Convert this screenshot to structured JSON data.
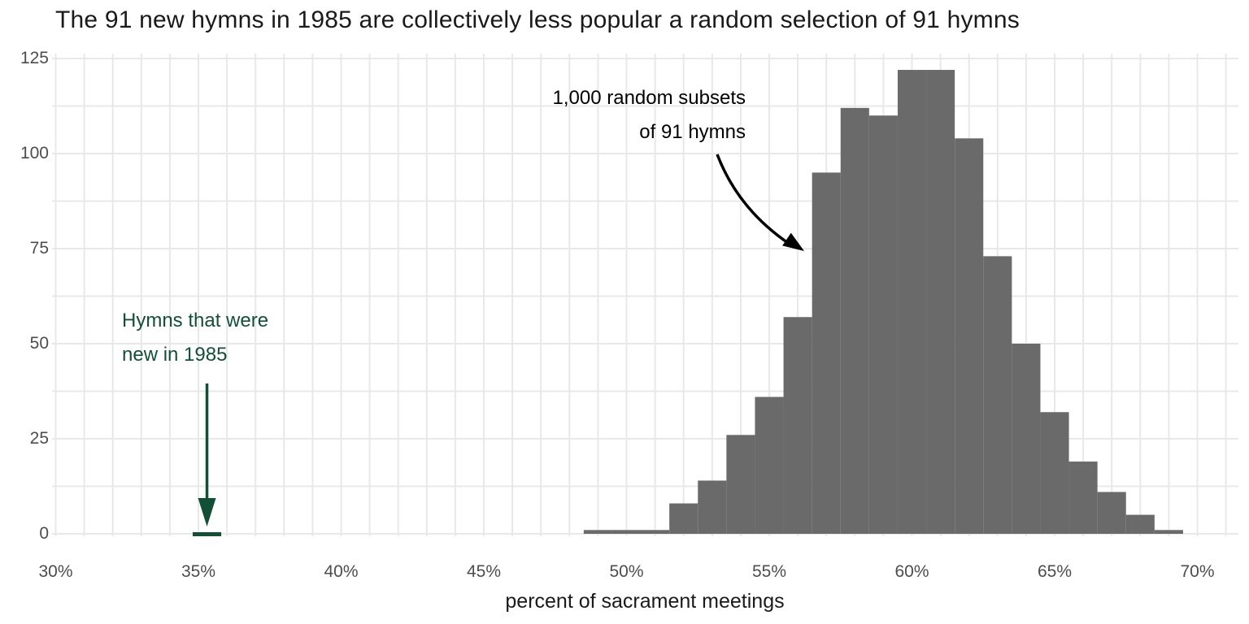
{
  "title": "The 91 new hymns in 1985 are collectively less popular a random selection of 91 hymns",
  "chart_data": {
    "type": "histogram",
    "title": "The 91 new hymns in 1985 are collectively less popular a random selection of 91 hymns",
    "xlabel": "percent of sacrament meetings",
    "ylabel": "",
    "x_ticks": [
      "30%",
      "35%",
      "40%",
      "45%",
      "50%",
      "55%",
      "60%",
      "65%",
      "70%"
    ],
    "x_tick_values": [
      30,
      35,
      40,
      45,
      50,
      55,
      60,
      65,
      70
    ],
    "y_ticks": [
      "0",
      "25",
      "50",
      "75",
      "100",
      "125"
    ],
    "y_tick_values": [
      0,
      25,
      50,
      75,
      100,
      125
    ],
    "xlim": [
      29.9,
      71.5
    ],
    "ylim": [
      0,
      127
    ],
    "grid": {
      "x_line_every_percent": 1,
      "y_line_every_count": 12.5,
      "grid_on": true
    },
    "bin_width_percent": 1,
    "bins": {
      "centers_percent": [
        49,
        50,
        51,
        52,
        53,
        54,
        55,
        56,
        57,
        58,
        59,
        60,
        61,
        62,
        63,
        64,
        65,
        66,
        67,
        68,
        69
      ],
      "counts": [
        1,
        1,
        1,
        8,
        14,
        26,
        36,
        57,
        95,
        112,
        110,
        122,
        122,
        104,
        73,
        50,
        32,
        19,
        11,
        5,
        1
      ]
    },
    "total_samples": 1000,
    "new_1985_marker": {
      "center_percent": 35.3,
      "width_percent": 1,
      "count": 1
    },
    "colors": {
      "bar": "#6a6a6a",
      "grid": "#e8e8e8",
      "annotation_green": "#134f37",
      "annotation_black": "#000000",
      "tick_label": "#4d4d4d",
      "title": "#1a1a1a"
    },
    "legend": "none"
  },
  "annotations": {
    "random_subsets": {
      "line1": "1,000 random subsets",
      "line2": "of 91 hymns"
    },
    "new_hymns": {
      "line1": "Hymns that were",
      "line2": "new in 1985"
    }
  }
}
